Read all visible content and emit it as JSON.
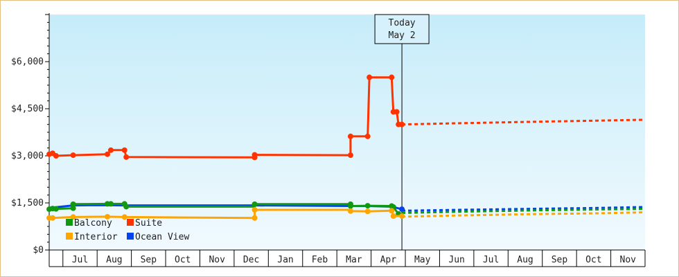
{
  "chart_data": {
    "type": "line",
    "title": "",
    "xlabel": "",
    "ylabel": "",
    "ylim": [
      0,
      7500
    ],
    "y_ticks": [
      {
        "value": 0,
        "label": "$0"
      },
      {
        "value": 1500,
        "label": "$1,500"
      },
      {
        "value": 3000,
        "label": "$3,000"
      },
      {
        "value": 4500,
        "label": "$4,500"
      },
      {
        "value": 6000,
        "label": "$6,000"
      }
    ],
    "x_range": [
      0,
      17.4
    ],
    "month_ticks": [
      "Jul",
      "Aug",
      "Sep",
      "Oct",
      "Nov",
      "Dec",
      "Jan",
      "Feb",
      "Mar",
      "Apr",
      "May",
      "Jun",
      "Jul",
      "Aug",
      "Sep",
      "Oct",
      "Nov"
    ],
    "today": {
      "x": 10.3,
      "line1": "Today",
      "line2": "May 2"
    },
    "legend": {
      "placement": "bottom-left"
    },
    "series": [
      {
        "name": "Suite",
        "color": "#ff3300",
        "points": [
          [
            0,
            3050
          ],
          [
            0.1,
            3080
          ],
          [
            0.2,
            3000
          ],
          [
            0.7,
            3020
          ],
          [
            1.7,
            3050
          ],
          [
            1.8,
            3180
          ],
          [
            2.2,
            3180
          ],
          [
            2.25,
            2960
          ],
          [
            6.0,
            2950
          ],
          [
            6.0,
            3030
          ],
          [
            8.8,
            3020
          ],
          [
            8.8,
            3620
          ],
          [
            9.3,
            3620
          ],
          [
            9.35,
            5500
          ],
          [
            10.0,
            5500
          ],
          [
            10.05,
            4400
          ],
          [
            10.15,
            4400
          ],
          [
            10.2,
            4000
          ],
          [
            10.3,
            4000
          ]
        ],
        "markers": [
          [
            0,
            3050
          ],
          [
            0.1,
            3080
          ],
          [
            0.2,
            3000
          ],
          [
            0.7,
            3020
          ],
          [
            1.7,
            3050
          ],
          [
            1.8,
            3180
          ],
          [
            2.2,
            3180
          ],
          [
            2.25,
            2960
          ],
          [
            6.0,
            2950
          ],
          [
            6.0,
            3030
          ],
          [
            8.8,
            3020
          ],
          [
            8.8,
            3620
          ],
          [
            9.3,
            3620
          ],
          [
            9.35,
            5500
          ],
          [
            10.0,
            5500
          ],
          [
            10.05,
            4400
          ],
          [
            10.15,
            4400
          ],
          [
            10.2,
            4000
          ],
          [
            10.3,
            4000
          ]
        ],
        "forecast": [
          [
            10.3,
            4000
          ],
          [
            12.0,
            4040
          ],
          [
            14.0,
            4080
          ],
          [
            16.0,
            4120
          ],
          [
            17.4,
            4150
          ]
        ]
      },
      {
        "name": "Ocean View",
        "color": "#0044ee",
        "points": [
          [
            0,
            1350
          ],
          [
            0.1,
            1350
          ],
          [
            0.7,
            1420
          ],
          [
            1.7,
            1430
          ],
          [
            2.2,
            1420
          ],
          [
            6.0,
            1420
          ],
          [
            8.8,
            1400
          ],
          [
            9.3,
            1400
          ],
          [
            10.0,
            1380
          ],
          [
            10.3,
            1300
          ]
        ],
        "markers": [
          [
            10.3,
            1300
          ]
        ],
        "forecast": [
          [
            10.3,
            1250
          ],
          [
            12.0,
            1280
          ],
          [
            14.0,
            1310
          ],
          [
            16.0,
            1340
          ],
          [
            17.4,
            1370
          ]
        ]
      },
      {
        "name": "Balcony",
        "color": "#119911",
        "points": [
          [
            0,
            1300
          ],
          [
            0.1,
            1320
          ],
          [
            0.2,
            1310
          ],
          [
            0.7,
            1330
          ],
          [
            0.7,
            1460
          ],
          [
            1.7,
            1470
          ],
          [
            1.8,
            1470
          ],
          [
            2.2,
            1470
          ],
          [
            2.25,
            1380
          ],
          [
            6.0,
            1380
          ],
          [
            6.0,
            1460
          ],
          [
            8.8,
            1460
          ],
          [
            8.8,
            1400
          ],
          [
            9.3,
            1410
          ],
          [
            10.0,
            1400
          ],
          [
            10.05,
            1370
          ],
          [
            10.2,
            1150
          ],
          [
            10.3,
            1150
          ]
        ],
        "markers": [
          [
            0,
            1300
          ],
          [
            0.1,
            1320
          ],
          [
            0.2,
            1310
          ],
          [
            0.7,
            1330
          ],
          [
            0.7,
            1460
          ],
          [
            1.7,
            1470
          ],
          [
            1.8,
            1470
          ],
          [
            2.2,
            1470
          ],
          [
            2.25,
            1380
          ],
          [
            6.0,
            1460
          ],
          [
            8.8,
            1460
          ],
          [
            8.8,
            1400
          ],
          [
            9.3,
            1410
          ],
          [
            10.0,
            1400
          ],
          [
            10.05,
            1370
          ],
          [
            10.2,
            1150
          ]
        ],
        "forecast": [
          [
            10.3,
            1180
          ],
          [
            12.0,
            1220
          ],
          [
            14.0,
            1260
          ],
          [
            16.0,
            1290
          ],
          [
            17.4,
            1310
          ]
        ]
      },
      {
        "name": "Interior",
        "color": "#ffa500",
        "points": [
          [
            0,
            1020
          ],
          [
            0.1,
            1020
          ],
          [
            0.7,
            1050
          ],
          [
            1.7,
            1060
          ],
          [
            2.2,
            1050
          ],
          [
            6.0,
            1020
          ],
          [
            6.0,
            1280
          ],
          [
            8.8,
            1280
          ],
          [
            8.8,
            1240
          ],
          [
            9.3,
            1230
          ],
          [
            10.0,
            1250
          ],
          [
            10.05,
            1080
          ],
          [
            10.3,
            1080
          ]
        ],
        "markers": [
          [
            0,
            1020
          ],
          [
            0.1,
            1020
          ],
          [
            0.7,
            1050
          ],
          [
            1.7,
            1060
          ],
          [
            2.2,
            1050
          ],
          [
            6.0,
            1020
          ],
          [
            6.0,
            1280
          ],
          [
            8.8,
            1240
          ],
          [
            9.3,
            1230
          ],
          [
            10.0,
            1250
          ],
          [
            10.05,
            1080
          ],
          [
            10.3,
            1080
          ]
        ],
        "forecast": [
          [
            10.3,
            1060
          ],
          [
            12.0,
            1100
          ],
          [
            14.0,
            1140
          ],
          [
            16.0,
            1170
          ],
          [
            17.4,
            1200
          ]
        ]
      }
    ]
  },
  "legend_items": [
    {
      "name": "Balcony",
      "color": "#119911"
    },
    {
      "name": "Suite",
      "color": "#ff3300"
    },
    {
      "name": "Interior",
      "color": "#ffa500"
    },
    {
      "name": "Ocean View",
      "color": "#0044ee"
    }
  ]
}
